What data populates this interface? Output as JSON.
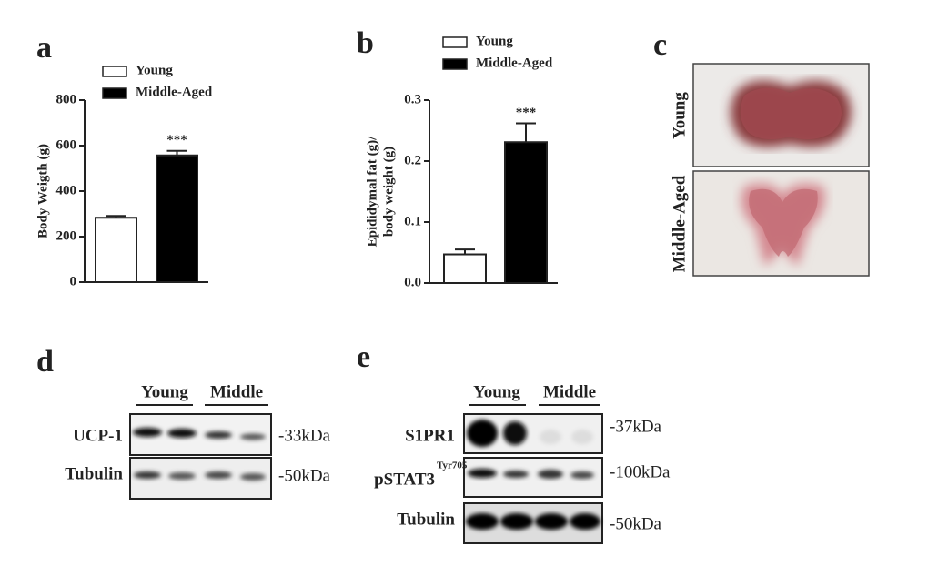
{
  "chart_data": [
    {
      "type": "bar",
      "panel_label": "a",
      "ylabel": [
        "Body Weigth (g)"
      ],
      "categories": [
        null
      ],
      "series": [
        {
          "name": "Young",
          "color": "#ffffff",
          "values": [
            283
          ],
          "errors": [
            8
          ]
        },
        {
          "name": "Middle-Aged",
          "color": "#000000",
          "values": [
            557
          ],
          "errors": [
            20
          ]
        }
      ],
      "annotation": "***",
      "ylim": [
        0,
        800
      ],
      "yticks": [
        0,
        200,
        400,
        600,
        800
      ]
    },
    {
      "type": "bar",
      "panel_label": "b",
      "ylabel": [
        "Epididymal fat (g)/",
        "body weight (g)"
      ],
      "categories": [
        null
      ],
      "series": [
        {
          "name": "Young",
          "color": "#ffffff",
          "values": [
            0.047
          ],
          "errors": [
            0.008
          ]
        },
        {
          "name": "Middle-Aged",
          "color": "#000000",
          "values": [
            0.231
          ],
          "errors": [
            0.031
          ]
        }
      ],
      "annotation": "***",
      "ylim": [
        0,
        0.3
      ],
      "yticks": [
        {
          "value": 0,
          "label": "0.0"
        },
        0.1,
        0.2,
        0.3
      ]
    }
  ],
  "photos": {
    "panel_label": "c",
    "labels": [
      "Young",
      "Middle-Aged"
    ]
  },
  "blot_d": {
    "panel_label": "d",
    "groups": [
      "Young",
      "Middle"
    ],
    "rows": [
      {
        "label": "UCP-1",
        "size": "-33kDa"
      },
      {
        "label": "Tubulin",
        "size": "-50kDa"
      }
    ]
  },
  "blot_e": {
    "panel_label": "e",
    "groups": [
      "Young",
      "Middle"
    ],
    "rows": [
      {
        "label": "S1PR1",
        "size": "-37kDa"
      },
      {
        "label": "pSTAT3",
        "superscript": "Tyr705",
        "size": "-100kDa"
      },
      {
        "label": "Tubulin",
        "size": "-50kDa"
      }
    ]
  }
}
